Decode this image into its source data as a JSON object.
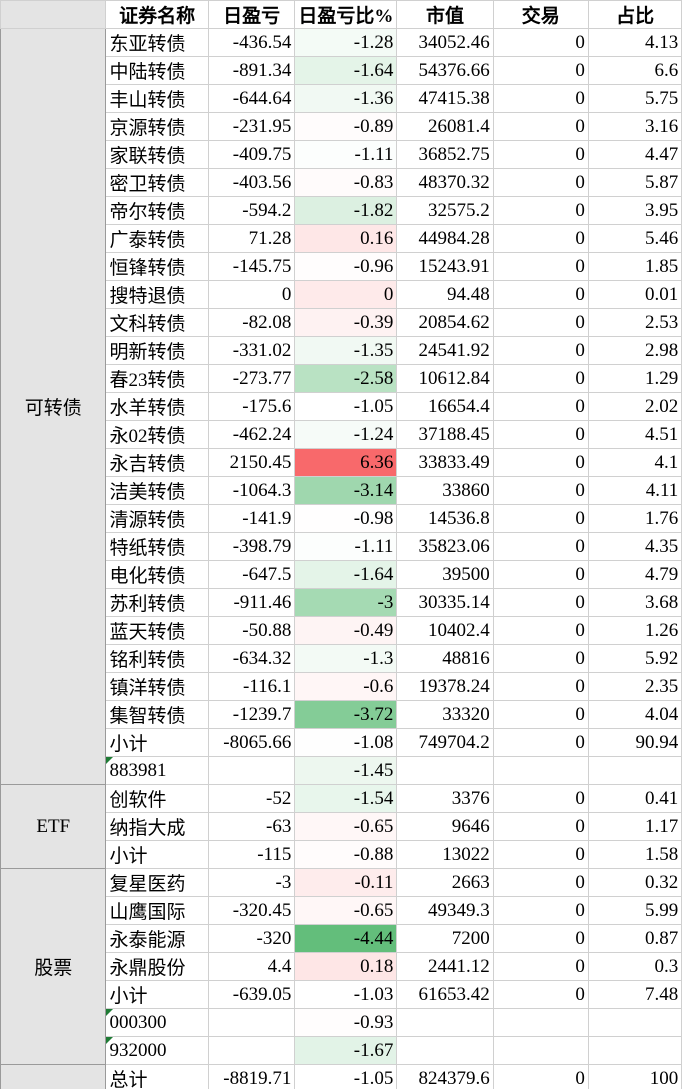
{
  "table": {
    "header": [
      "证券名称",
      "日盈亏",
      "日盈亏比%",
      "市值",
      "交易",
      "占比"
    ],
    "groups": [
      {
        "label": "可转债",
        "rows": [
          [
            "东亚转债",
            -436.54,
            -1.28,
            34052.46,
            0,
            4.13
          ],
          [
            "中陆转债",
            -891.34,
            -1.64,
            54376.66,
            0,
            6.6
          ],
          [
            "丰山转债",
            -644.64,
            -1.36,
            47415.38,
            0,
            5.75
          ],
          [
            "京源转债",
            -231.95,
            -0.89,
            26081.4,
            0,
            3.16
          ],
          [
            "家联转债",
            -409.75,
            -1.11,
            36852.75,
            0,
            4.47
          ],
          [
            "密卫转债",
            -403.56,
            -0.83,
            48370.32,
            0,
            5.87
          ],
          [
            "帝尔转债",
            -594.2,
            -1.82,
            32575.2,
            0,
            3.95
          ],
          [
            "广泰转债",
            71.28,
            0.16,
            44984.28,
            0,
            5.46
          ],
          [
            "恒锋转债",
            -145.75,
            -0.96,
            15243.91,
            0,
            1.85
          ],
          [
            "搜特退债",
            0,
            0,
            94.48,
            0,
            0.01
          ],
          [
            "文科转债",
            -82.08,
            -0.39,
            20854.62,
            0,
            2.53
          ],
          [
            "明新转债",
            -331.02,
            -1.35,
            24541.92,
            0,
            2.98
          ],
          [
            "春23转债",
            -273.77,
            -2.58,
            10612.84,
            0,
            1.29
          ],
          [
            "水羊转债",
            -175.6,
            -1.05,
            16654.4,
            0,
            2.02
          ],
          [
            "永02转债",
            -462.24,
            -1.24,
            37188.45,
            0,
            4.51
          ],
          [
            "永吉转债",
            2150.45,
            6.36,
            33833.49,
            0,
            4.1
          ],
          [
            "洁美转债",
            -1064.3,
            -3.14,
            33860,
            0,
            4.11
          ],
          [
            "清源转债",
            -141.9,
            -0.98,
            14536.8,
            0,
            1.76
          ],
          [
            "特纸转债",
            -398.79,
            -1.11,
            35823.06,
            0,
            4.35
          ],
          [
            "电化转债",
            -647.5,
            -1.64,
            39500,
            0,
            4.79
          ],
          [
            "苏利转债",
            -911.46,
            -3,
            30335.14,
            0,
            3.68
          ],
          [
            "蓝天转债",
            -50.88,
            -0.49,
            10402.4,
            0,
            1.26
          ],
          [
            "铭利转债",
            -634.32,
            -1.3,
            48816,
            0,
            5.92
          ],
          [
            "镇洋转债",
            -116.1,
            -0.6,
            19378.24,
            0,
            2.35
          ],
          [
            "集智转债",
            -1239.7,
            -3.72,
            33320,
            0,
            4.04
          ],
          [
            "小计",
            -8065.66,
            -1.08,
            749704.2,
            0,
            90.94
          ],
          [
            "883981",
            null,
            -1.45,
            null,
            null,
            null
          ]
        ]
      },
      {
        "label": "ETF",
        "rows": [
          [
            "创软件",
            -52,
            -1.54,
            3376,
            0,
            0.41
          ],
          [
            "纳指大成",
            -63,
            -0.65,
            9646,
            0,
            1.17
          ],
          [
            "小计",
            -115,
            -0.88,
            13022,
            0,
            1.58
          ]
        ]
      },
      {
        "label": "股票",
        "rows": [
          [
            "复星医药",
            -3,
            -0.11,
            2663,
            0,
            0.32
          ],
          [
            "山鹰国际",
            -320.45,
            -0.65,
            49349.3,
            0,
            5.99
          ],
          [
            "永泰能源",
            -320,
            -4.44,
            7200,
            0,
            0.87
          ],
          [
            "永鼎股份",
            4.4,
            0.18,
            2441.12,
            0,
            0.3
          ],
          [
            "小计",
            -639.05,
            -1.03,
            61653.42,
            0,
            7.48
          ],
          [
            "000300",
            null,
            -0.93,
            null,
            null,
            null
          ],
          [
            "932000",
            null,
            -1.67,
            null,
            null,
            null
          ]
        ]
      }
    ],
    "total": [
      "总计",
      -8819.71,
      -1.05,
      824379.6,
      0,
      100
    ]
  }
}
